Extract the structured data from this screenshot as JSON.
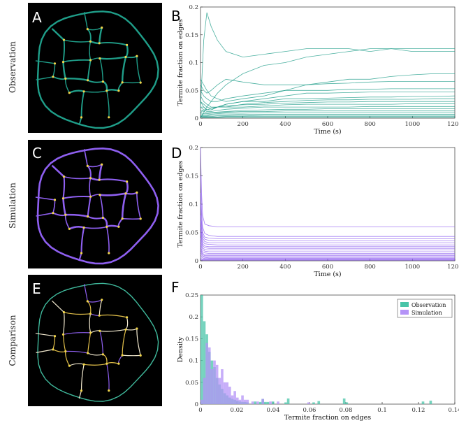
{
  "row_labels": [
    "Observation",
    "Simulation",
    "Comparison"
  ],
  "panel_letters": [
    "A",
    "B",
    "C",
    "D",
    "E",
    "F"
  ],
  "colors": {
    "observation": "#1f9e89",
    "simulation": "#8e5ff0",
    "observation_hist": "#48c4a8",
    "simulation_hist": "#b493f7",
    "comparison_positive": "#e3c04a",
    "comparison_negative": "#3fb89b",
    "node": "#f2d64b"
  },
  "chart_data": [
    {
      "panel": "B",
      "type": "line",
      "xlabel": "Time (s)",
      "ylabel": "Termite fraction on edges",
      "xlim": [
        0,
        1200
      ],
      "ylim": [
        0,
        0.2
      ],
      "xticks": [
        "0",
        "200",
        "400",
        "600",
        "800",
        "1000",
        "1200"
      ],
      "yticks": [
        "0",
        "0.05",
        "0.1",
        "0.15",
        "0.2"
      ],
      "x": [
        0,
        15,
        30,
        50,
        80,
        120,
        200,
        300,
        400,
        500,
        600,
        700,
        800,
        900,
        1000,
        1100,
        1200
      ],
      "series": [
        {
          "values": [
            0.02,
            0.14,
            0.19,
            0.165,
            0.14,
            0.12,
            0.11,
            0.115,
            0.12,
            0.125,
            0.125,
            0.125,
            0.12,
            0.125,
            0.12,
            0.12,
            0.12
          ]
        },
        {
          "values": [
            0.0,
            0.01,
            0.02,
            0.03,
            0.045,
            0.06,
            0.08,
            0.095,
            0.1,
            0.11,
            0.115,
            0.12,
            0.125,
            0.125,
            0.125,
            0.125,
            0.125
          ]
        },
        {
          "values": [
            0.07,
            0.06,
            0.05,
            0.04,
            0.035,
            0.03,
            0.035,
            0.04,
            0.05,
            0.06,
            0.065,
            0.07,
            0.07,
            0.075,
            0.078,
            0.08,
            0.08
          ]
        },
        {
          "values": [
            0.06,
            0.05,
            0.045,
            0.05,
            0.06,
            0.07,
            0.065,
            0.06,
            0.06,
            0.06,
            0.062,
            0.063,
            0.065,
            0.066,
            0.066,
            0.066,
            0.066
          ]
        },
        {
          "values": [
            0.05,
            0.04,
            0.035,
            0.03,
            0.03,
            0.035,
            0.04,
            0.045,
            0.05,
            0.05,
            0.05,
            0.052,
            0.052,
            0.053,
            0.053,
            0.053,
            0.053
          ]
        },
        {
          "values": [
            0.04,
            0.03,
            0.025,
            0.02,
            0.02,
            0.025,
            0.03,
            0.035,
            0.04,
            0.045,
            0.045,
            0.046,
            0.047,
            0.047,
            0.047,
            0.047,
            0.047
          ]
        },
        {
          "values": [
            0.03,
            0.02,
            0.015,
            0.015,
            0.02,
            0.025,
            0.03,
            0.03,
            0.035,
            0.035,
            0.036,
            0.037,
            0.038,
            0.038,
            0.039,
            0.039,
            0.04
          ]
        },
        {
          "values": [
            0.02,
            0.02,
            0.015,
            0.015,
            0.02,
            0.02,
            0.025,
            0.028,
            0.03,
            0.032,
            0.033,
            0.033,
            0.034,
            0.034,
            0.034,
            0.035,
            0.035
          ]
        },
        {
          "values": [
            0.03,
            0.025,
            0.02,
            0.018,
            0.02,
            0.022,
            0.024,
            0.025,
            0.027,
            0.028,
            0.029,
            0.029,
            0.03,
            0.03,
            0.03,
            0.03,
            0.03
          ]
        },
        {
          "values": [
            0.01,
            0.015,
            0.015,
            0.018,
            0.02,
            0.02,
            0.02,
            0.022,
            0.024,
            0.025,
            0.025,
            0.025,
            0.025,
            0.025,
            0.026,
            0.026,
            0.026
          ]
        },
        {
          "values": [
            0.02,
            0.015,
            0.012,
            0.012,
            0.014,
            0.016,
            0.018,
            0.02,
            0.02,
            0.02,
            0.02,
            0.02,
            0.021,
            0.021,
            0.021,
            0.021,
            0.021
          ]
        },
        {
          "values": [
            0.015,
            0.012,
            0.01,
            0.01,
            0.011,
            0.012,
            0.014,
            0.015,
            0.016,
            0.016,
            0.017,
            0.017,
            0.017,
            0.017,
            0.017,
            0.017,
            0.017
          ]
        },
        {
          "values": [
            0.01,
            0.008,
            0.008,
            0.009,
            0.01,
            0.011,
            0.012,
            0.012,
            0.013,
            0.013,
            0.013,
            0.013,
            0.013,
            0.013,
            0.013,
            0.013,
            0.013
          ]
        },
        {
          "values": [
            0.008,
            0.006,
            0.006,
            0.007,
            0.008,
            0.009,
            0.009,
            0.01,
            0.01,
            0.01,
            0.01,
            0.01,
            0.01,
            0.01,
            0.01,
            0.01,
            0.01
          ]
        },
        {
          "values": [
            0.005,
            0.004,
            0.004,
            0.005,
            0.006,
            0.006,
            0.007,
            0.007,
            0.007,
            0.007,
            0.007,
            0.007,
            0.007,
            0.007,
            0.007,
            0.007,
            0.007
          ]
        },
        {
          "values": [
            0.004,
            0.003,
            0.003,
            0.003,
            0.004,
            0.004,
            0.004,
            0.005,
            0.005,
            0.005,
            0.005,
            0.005,
            0.005,
            0.005,
            0.005,
            0.005,
            0.005
          ]
        },
        {
          "values": [
            0.003,
            0.002,
            0.002,
            0.002,
            0.002,
            0.003,
            0.003,
            0.003,
            0.003,
            0.003,
            0.003,
            0.003,
            0.003,
            0.003,
            0.003,
            0.003,
            0.003
          ]
        },
        {
          "values": [
            0.002,
            0.001,
            0.001,
            0.001,
            0.001,
            0.001,
            0.001,
            0.001,
            0.001,
            0.001,
            0.001,
            0.001,
            0.001,
            0.001,
            0.001,
            0.001,
            0.001
          ]
        }
      ]
    },
    {
      "panel": "D",
      "type": "line",
      "xlabel": "Time (s)",
      "ylabel": "Termite fraction on edges",
      "xlim": [
        0,
        1200
      ],
      "ylim": [
        0,
        0.2
      ],
      "xticks": [
        "0",
        "200",
        "400",
        "600",
        "800",
        "1000",
        "1200"
      ],
      "yticks": [
        "0",
        "0.05",
        "0.1",
        "0.15",
        "0.2"
      ],
      "x": [
        0,
        5,
        10,
        20,
        40,
        80,
        150,
        300,
        600,
        1200
      ],
      "series": [
        {
          "values": [
            0.2,
            0.12,
            0.08,
            0.065,
            0.062,
            0.06,
            0.06,
            0.06,
            0.06,
            0.06
          ]
        },
        {
          "values": [
            0.15,
            0.09,
            0.06,
            0.048,
            0.045,
            0.043,
            0.043,
            0.043,
            0.043,
            0.043
          ]
        },
        {
          "values": [
            0.12,
            0.07,
            0.05,
            0.042,
            0.04,
            0.039,
            0.039,
            0.039,
            0.039,
            0.039
          ]
        },
        {
          "values": [
            0.1,
            0.06,
            0.045,
            0.038,
            0.036,
            0.035,
            0.035,
            0.035,
            0.035,
            0.035
          ]
        },
        {
          "values": [
            0.08,
            0.05,
            0.04,
            0.034,
            0.032,
            0.032,
            0.032,
            0.032,
            0.032,
            0.032
          ]
        },
        {
          "values": [
            0.07,
            0.045,
            0.035,
            0.03,
            0.029,
            0.028,
            0.028,
            0.028,
            0.028,
            0.028
          ]
        },
        {
          "values": [
            0.06,
            0.04,
            0.03,
            0.026,
            0.025,
            0.025,
            0.025,
            0.025,
            0.025,
            0.025
          ]
        },
        {
          "values": [
            0.05,
            0.035,
            0.027,
            0.023,
            0.022,
            0.022,
            0.022,
            0.022,
            0.022,
            0.022
          ]
        },
        {
          "values": [
            0.04,
            0.03,
            0.023,
            0.02,
            0.019,
            0.019,
            0.019,
            0.019,
            0.019,
            0.019
          ]
        },
        {
          "values": [
            0.035,
            0.025,
            0.02,
            0.017,
            0.016,
            0.016,
            0.016,
            0.016,
            0.016,
            0.016
          ]
        },
        {
          "values": [
            0.03,
            0.02,
            0.016,
            0.014,
            0.013,
            0.013,
            0.013,
            0.013,
            0.013,
            0.013
          ]
        },
        {
          "values": [
            0.025,
            0.017,
            0.013,
            0.011,
            0.011,
            0.011,
            0.011,
            0.011,
            0.011,
            0.011
          ]
        },
        {
          "values": [
            0.02,
            0.014,
            0.011,
            0.009,
            0.009,
            0.009,
            0.009,
            0.009,
            0.009,
            0.009
          ]
        },
        {
          "values": [
            0.016,
            0.011,
            0.009,
            0.007,
            0.007,
            0.007,
            0.007,
            0.007,
            0.007,
            0.007
          ]
        },
        {
          "values": [
            0.012,
            0.008,
            0.007,
            0.006,
            0.005,
            0.005,
            0.005,
            0.005,
            0.005,
            0.005
          ]
        },
        {
          "values": [
            0.008,
            0.006,
            0.005,
            0.004,
            0.004,
            0.004,
            0.004,
            0.004,
            0.004,
            0.004
          ]
        },
        {
          "values": [
            0.005,
            0.004,
            0.003,
            0.003,
            0.003,
            0.003,
            0.003,
            0.003,
            0.003,
            0.003
          ]
        },
        {
          "values": [
            0.003,
            0.002,
            0.002,
            0.002,
            0.002,
            0.002,
            0.002,
            0.002,
            0.002,
            0.002
          ]
        },
        {
          "values": [
            0.002,
            0.001,
            0.001,
            0.001,
            0.001,
            0.001,
            0.001,
            0.001,
            0.001,
            0.001
          ]
        }
      ]
    },
    {
      "panel": "F",
      "type": "bar",
      "xlabel": "Termite fraction on edges",
      "ylabel": "Density",
      "xlim": [
        0,
        0.14
      ],
      "ylim": [
        0,
        0.25
      ],
      "xticks": [
        "0",
        "0.02",
        "0.04",
        "0.06",
        "0.08",
        "0.1",
        "0.12",
        "0.14"
      ],
      "yticks": [
        "0",
        "0.05",
        "0.1",
        "0.15",
        "0.2",
        "0.25"
      ],
      "legend": {
        "position": "top-right",
        "entries": [
          "Observation",
          "Simulation"
        ]
      },
      "bin_width": 0.0014,
      "series": [
        {
          "name": "Observation",
          "x": [
            0.0007,
            0.0021,
            0.0035,
            0.0049,
            0.0063,
            0.0077,
            0.0091,
            0.0105,
            0.0119,
            0.0133,
            0.0147,
            0.0161,
            0.0175,
            0.0189,
            0.0203,
            0.0217,
            0.0231,
            0.0245,
            0.0259,
            0.0301,
            0.0329,
            0.0343,
            0.0357,
            0.0371,
            0.0399,
            0.0469,
            0.0483,
            0.0623,
            0.0651,
            0.0791,
            0.0805,
            0.1225,
            0.1267
          ],
          "values": [
            0.25,
            0.19,
            0.16,
            0.12,
            0.1,
            0.085,
            0.06,
            0.045,
            0.035,
            0.025,
            0.02,
            0.015,
            0.012,
            0.01,
            0.008,
            0.006,
            0.005,
            0.005,
            0.004,
            0.006,
            0.005,
            0.012,
            0.005,
            0.005,
            0.006,
            0.004,
            0.013,
            0.004,
            0.007,
            0.013,
            0.004,
            0.006,
            0.008
          ]
        },
        {
          "name": "Simulation",
          "x": [
            0.0007,
            0.0021,
            0.0035,
            0.0049,
            0.0063,
            0.0077,
            0.0091,
            0.0105,
            0.0119,
            0.0133,
            0.0147,
            0.0161,
            0.0175,
            0.0189,
            0.0203,
            0.0217,
            0.0231,
            0.0245,
            0.0259,
            0.0287,
            0.0315,
            0.0343,
            0.0385,
            0.0427,
            0.0595
          ],
          "values": [
            0.01,
            0.06,
            0.14,
            0.13,
            0.08,
            0.1,
            0.09,
            0.06,
            0.08,
            0.05,
            0.05,
            0.04,
            0.02,
            0.03,
            0.015,
            0.01,
            0.02,
            0.01,
            0.01,
            0.006,
            0.006,
            0.012,
            0.006,
            0.006,
            0.004
          ]
        }
      ]
    }
  ]
}
